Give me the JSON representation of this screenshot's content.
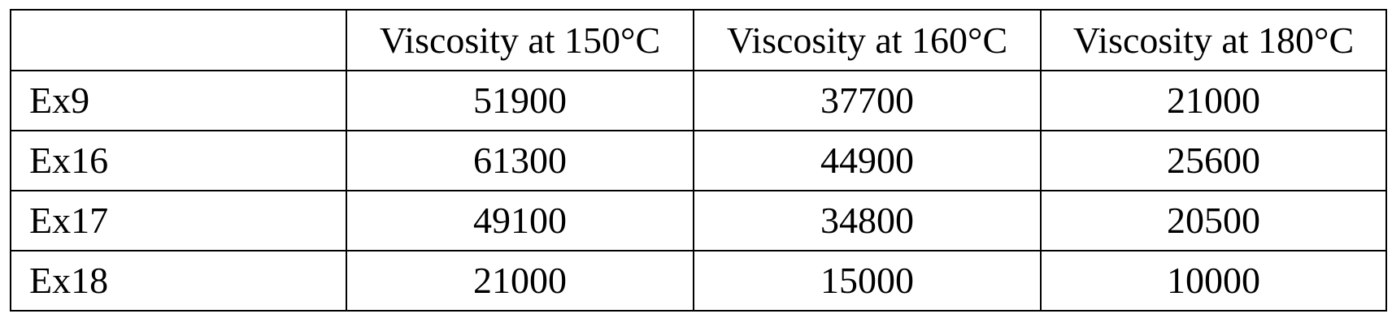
{
  "table": {
    "headers": [
      "",
      "Viscosity at 150°C",
      "Viscosity at 160°C",
      "Viscosity at 180°C"
    ],
    "rows": [
      {
        "label": "Ex9",
        "values": [
          "51900",
          "37700",
          "21000"
        ]
      },
      {
        "label": "Ex16",
        "values": [
          "61300",
          "44900",
          "25600"
        ]
      },
      {
        "label": "Ex17",
        "values": [
          "49100",
          "34800",
          "20500"
        ]
      },
      {
        "label": "Ex18",
        "values": [
          "21000",
          "15000",
          "10000"
        ]
      }
    ]
  }
}
